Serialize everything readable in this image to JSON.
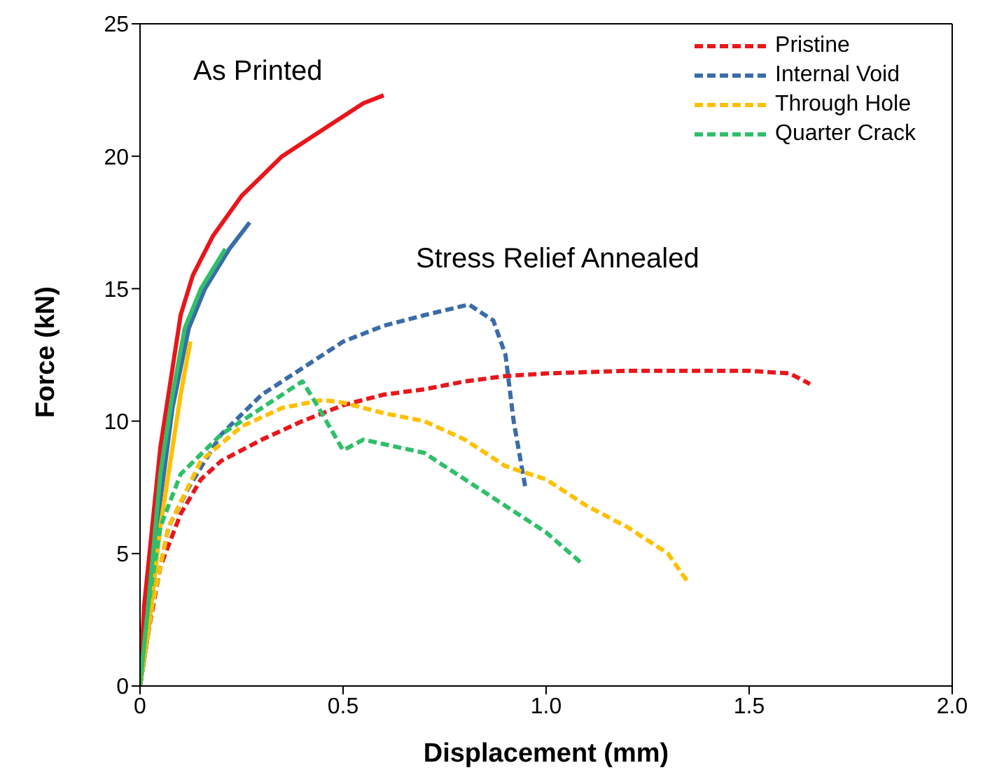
{
  "chart_data": {
    "type": "line",
    "xlabel": "Displacement (mm)",
    "ylabel": "Force (kN)",
    "annotations": [
      "As Printed",
      "Stress Relief Annealed"
    ],
    "xlim": [
      0,
      2
    ],
    "xticks": [
      0,
      0.5,
      {
        "value": 1,
        "label": "1.0"
      },
      1.5,
      {
        "value": 2,
        "label": "2.0"
      }
    ],
    "ylim": [
      0,
      25
    ],
    "yticks": [
      0,
      5,
      10,
      15,
      20,
      25
    ],
    "legend": "top right",
    "marker": "none",
    "series": [
      {
        "color": "#e8161b",
        "x": [
          0,
          0.01,
          0.03,
          0.05,
          0.08,
          0.1,
          0.13,
          0.18,
          0.25,
          0.35,
          0.45,
          0.55,
          0.6
        ],
        "values": [
          0,
          3,
          6,
          9,
          12,
          14,
          15.5,
          17,
          18.5,
          20,
          21,
          22,
          22.3
        ]
      },
      {
        "color": "#3b6ca8",
        "x": [
          0,
          0.02,
          0.05,
          0.08,
          0.12,
          0.16,
          0.22,
          0.27
        ],
        "values": [
          0,
          2,
          7,
          10.5,
          13.5,
          15,
          16.5,
          17.5
        ]
      },
      {
        "color": "#ffc000",
        "x": [
          0,
          0.02,
          0.05,
          0.08,
          0.1,
          0.124
        ],
        "values": [
          0,
          2,
          6,
          9,
          11,
          13
        ]
      },
      {
        "color": "#2fbf6a",
        "x": [
          0,
          0.02,
          0.05,
          0.08,
          0.11,
          0.15,
          0.21
        ],
        "values": [
          0,
          3,
          8,
          11,
          13.5,
          15,
          16.5
        ]
      },
      {
        "name": "Pristine",
        "color": "#e8161b",
        "line_style": "dashed",
        "x": [
          0,
          0.02,
          0.05,
          0.1,
          0.15,
          0.2,
          0.3,
          0.4,
          0.5,
          0.6,
          0.7,
          0.8,
          0.9,
          1.0,
          1.2,
          1.4,
          1.5,
          1.6,
          1.65
        ],
        "values": [
          0,
          2,
          4.5,
          6.5,
          7.8,
          8.5,
          9.3,
          10,
          10.6,
          11,
          11.2,
          11.5,
          11.7,
          11.8,
          11.9,
          11.9,
          11.9,
          11.8,
          11.4
        ]
      },
      {
        "name": "Internal Void",
        "color": "#3b6ca8",
        "line_style": "dashed",
        "x": [
          0,
          0.03,
          0.07,
          0.12,
          0.2,
          0.3,
          0.4,
          0.5,
          0.6,
          0.7,
          0.81,
          0.87,
          0.9,
          0.92,
          0.95
        ],
        "values": [
          0,
          3,
          6,
          7.5,
          9.5,
          11,
          12,
          13,
          13.6,
          14,
          14.4,
          13.8,
          12.5,
          10,
          7.4
        ]
      },
      {
        "name": "Through Hole",
        "color": "#ffc000",
        "line_style": "dashed",
        "x": [
          0,
          0.03,
          0.07,
          0.15,
          0.25,
          0.35,
          0.45,
          0.5,
          0.6,
          0.7,
          0.8,
          0.9,
          1.0,
          1.1,
          1.2,
          1.3,
          1.35
        ],
        "values": [
          0,
          3,
          6,
          8.5,
          9.8,
          10.5,
          10.8,
          10.7,
          10.3,
          10,
          9.3,
          8.3,
          7.8,
          6.8,
          6,
          5,
          3.9
        ]
      },
      {
        "name": "Quarter Crack",
        "color": "#2fbf6a",
        "line_style": "dashed",
        "x": [
          0,
          0.02,
          0.05,
          0.1,
          0.2,
          0.3,
          0.4,
          0.44,
          0.5,
          0.55,
          0.7,
          0.8,
          0.9,
          1.0,
          1.09
        ],
        "values": [
          0,
          3,
          6,
          8,
          9.5,
          10.5,
          11.5,
          10.5,
          8.9,
          9.3,
          8.8,
          7.8,
          6.8,
          5.8,
          4.6
        ]
      }
    ]
  }
}
